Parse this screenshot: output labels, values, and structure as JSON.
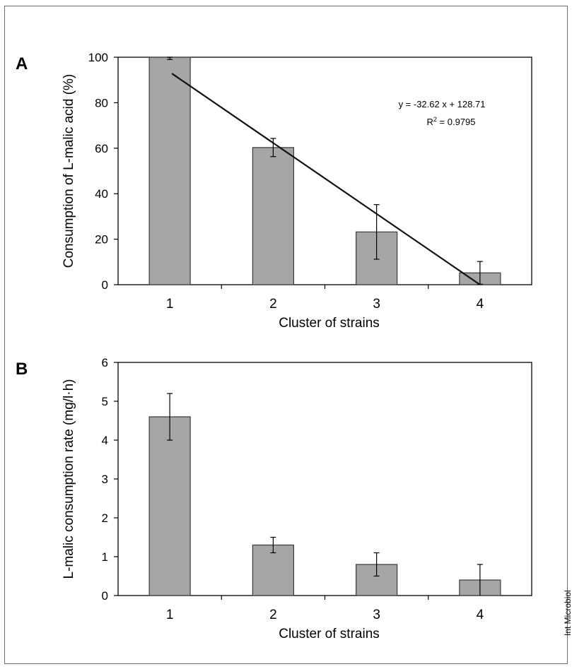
{
  "credit": "Int Microbiol",
  "chart_data": [
    {
      "type": "bar",
      "panel_label": "A",
      "categories": [
        "1",
        "2",
        "3",
        "4"
      ],
      "values": [
        100,
        60.3,
        23.2,
        5.2
      ],
      "error": [
        1,
        4,
        12,
        5
      ],
      "xlabel": "Cluster of strains",
      "ylabel": "Consumption of L-malic acid (%)",
      "ylim": [
        0,
        100
      ],
      "yticks": [
        "0",
        "20",
        "40",
        "60",
        "80",
        "100"
      ],
      "bar_color": "#a6a6a6",
      "trendline": {
        "equation": "y = -32.62 x + 128.71",
        "r2_label": "R",
        "r2_sup": "2",
        "r2_value": " = 0.9795",
        "slope": -32.62,
        "intercept": 128.71
      }
    },
    {
      "type": "bar",
      "panel_label": "B",
      "categories": [
        "1",
        "2",
        "3",
        "4"
      ],
      "values": [
        4.6,
        1.3,
        0.8,
        0.4
      ],
      "error": [
        0.6,
        0.2,
        0.3,
        0.4
      ],
      "xlabel": "Cluster of strains",
      "ylabel": "L-malic consumption rate (mg/l·h)",
      "ylim": [
        0,
        6
      ],
      "yticks": [
        "0",
        "1",
        "2",
        "3",
        "4",
        "5",
        "6"
      ],
      "bar_color": "#a6a6a6"
    }
  ]
}
